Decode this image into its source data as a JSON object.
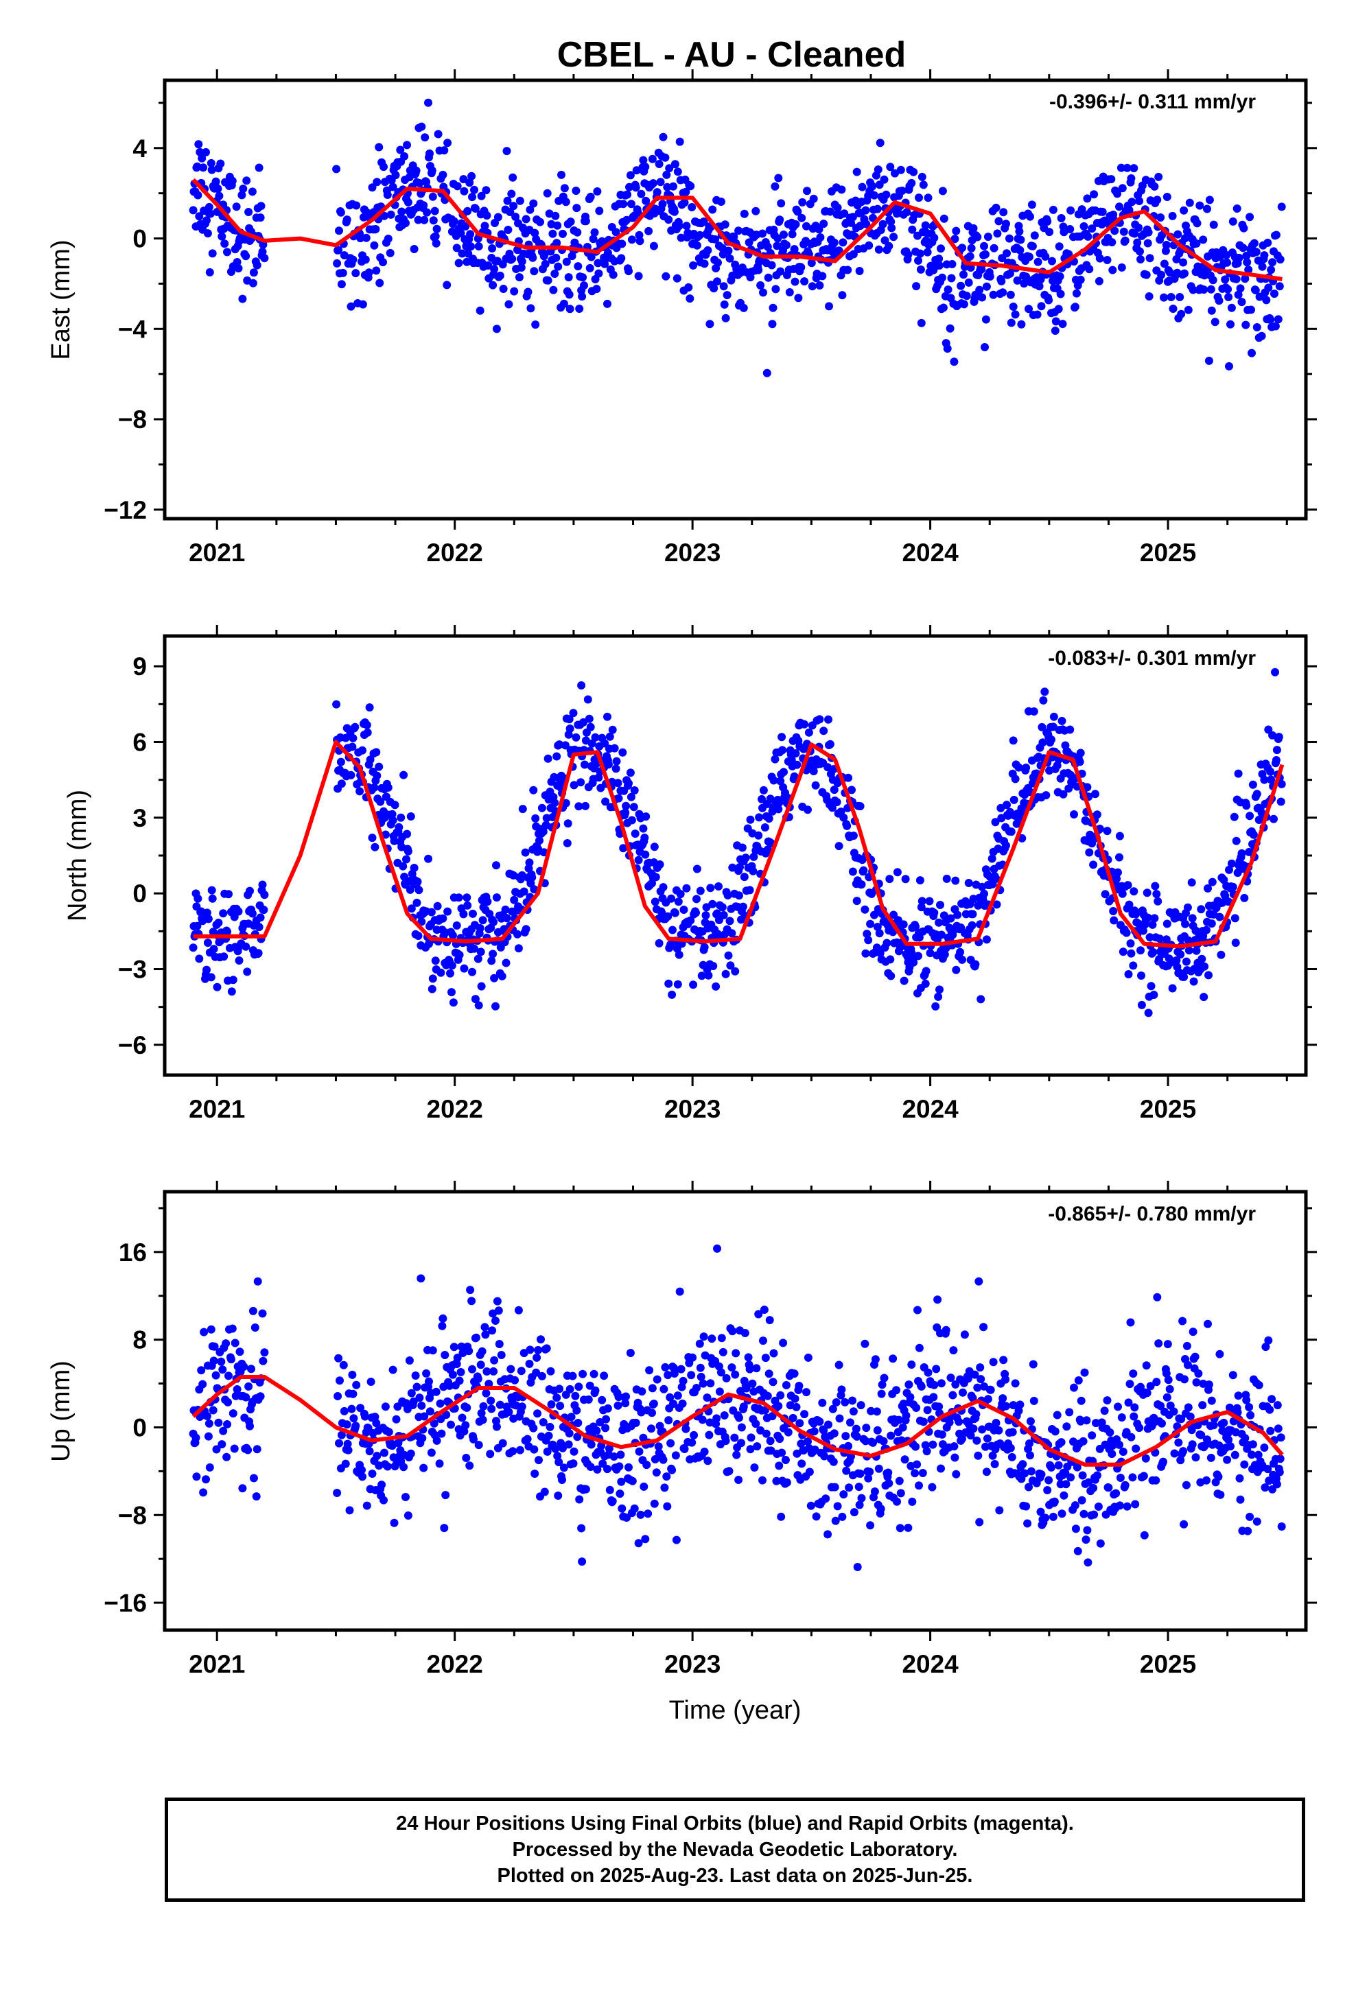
{
  "title": "CBEL  - AU - Cleaned",
  "colors": {
    "final_orbits": "#0000ff",
    "model_fit": "#ff0000",
    "frame": "#000000"
  },
  "footer": {
    "line1": "24 Hour Positions Using Final Orbits (blue) and Rapid Orbits (magenta).",
    "line2": "Processed by the Nevada Geodetic Laboratory.",
    "line3": "Plotted on 2025-Aug-23. Last data on 2025-Jun-25."
  },
  "chart_data": [
    {
      "type": "scatter",
      "ylabel": "East (mm)",
      "xlabel": "",
      "rate_text": "-0.396+/- 0.311 mm/yr",
      "xlim": [
        2020.78,
        2025.58
      ],
      "ylim": [
        -12.4,
        7.0
      ],
      "x_ticks": [
        "2021",
        "2022",
        "2023",
        "2024",
        "2025"
      ],
      "y_ticks": [
        4,
        0,
        -4,
        -8,
        -12
      ],
      "data_range": [
        2020.9,
        2025.48
      ],
      "gaps": [
        [
          2021.2,
          2021.5
        ]
      ],
      "series": [
        {
          "kind": "points",
          "legend_name": "Final Orbits",
          "x": [
            2020.92,
            2021.0,
            2021.08,
            2021.15,
            2021.55,
            2021.65,
            2021.75,
            2021.85,
            2021.95,
            2022.05,
            2022.2,
            2022.35,
            2022.5,
            2022.65,
            2022.8,
            2022.9,
            2023.0,
            2023.15,
            2023.3,
            2023.45,
            2023.55,
            2023.65,
            2023.75,
            2023.85,
            2023.95,
            2024.05,
            2024.2,
            2024.35,
            2024.5,
            2024.6,
            2024.75,
            2024.85,
            2025.0,
            2025.15,
            2025.3,
            2025.45
          ],
          "y": [
            2.6,
            1.5,
            0.5,
            -0.1,
            -0.4,
            0.6,
            1.8,
            2.5,
            1.5,
            0.1,
            -0.3,
            -0.4,
            -0.8,
            -0.2,
            1.5,
            1.8,
            0.5,
            -0.7,
            -0.7,
            -1.0,
            -0.8,
            0.3,
            1.3,
            1.7,
            0.2,
            -1.0,
            -1.2,
            -1.4,
            -1.4,
            -0.5,
            0.8,
            1.1,
            -0.5,
            -1.5,
            -1.6,
            -1.8
          ],
          "scatter_sd": 1.3
        },
        {
          "kind": "line",
          "legend_name": "Model fit",
          "x": [
            2020.9,
            2021.0,
            2021.1,
            2021.2,
            2021.35,
            2021.5,
            2021.65,
            2021.8,
            2021.95,
            2022.1,
            2022.3,
            2022.45,
            2022.6,
            2022.75,
            2022.85,
            2023.0,
            2023.15,
            2023.3,
            2023.45,
            2023.6,
            2023.75,
            2023.85,
            2024.0,
            2024.15,
            2024.3,
            2024.5,
            2024.65,
            2024.8,
            2024.9,
            2025.05,
            2025.2,
            2025.35,
            2025.48
          ],
          "y": [
            2.6,
            1.5,
            0.3,
            -0.1,
            0.0,
            -0.3,
            0.8,
            2.2,
            2.1,
            0.2,
            -0.4,
            -0.4,
            -0.6,
            0.5,
            1.8,
            1.8,
            -0.2,
            -0.8,
            -0.8,
            -1.0,
            0.5,
            1.6,
            1.1,
            -1.1,
            -1.2,
            -1.5,
            -0.5,
            0.9,
            1.2,
            -0.3,
            -1.4,
            -1.6,
            -1.8
          ]
        }
      ]
    },
    {
      "type": "scatter",
      "ylabel": "North (mm)",
      "xlabel": "",
      "rate_text": "-0.083+/- 0.301 mm/yr",
      "xlim": [
        2020.78,
        2025.58
      ],
      "ylim": [
        -7.2,
        10.2
      ],
      "x_ticks": [
        "2021",
        "2022",
        "2023",
        "2024",
        "2025"
      ],
      "y_ticks": [
        9,
        6,
        3,
        0,
        -3,
        -6
      ],
      "data_range": [
        2020.9,
        2025.48
      ],
      "gaps": [
        [
          2021.2,
          2021.5
        ]
      ],
      "series": [
        {
          "kind": "points",
          "legend_name": "Final Orbits",
          "x": [
            2020.92,
            2021.0,
            2021.08,
            2021.15,
            2021.55,
            2021.65,
            2021.75,
            2021.85,
            2021.95,
            2022.05,
            2022.2,
            2022.35,
            2022.5,
            2022.65,
            2022.8,
            2022.9,
            2023.0,
            2023.15,
            2023.3,
            2023.45,
            2023.55,
            2023.65,
            2023.75,
            2023.85,
            2023.95,
            2024.05,
            2024.2,
            2024.35,
            2024.5,
            2024.6,
            2024.75,
            2024.85,
            2025.0,
            2025.15,
            2025.3,
            2025.45
          ],
          "y": [
            -1.6,
            -1.7,
            -1.7,
            -1.6,
            6.0,
            4.5,
            2.5,
            -0.8,
            -1.9,
            -1.8,
            -1.8,
            2.0,
            5.8,
            5.0,
            1.5,
            -1.4,
            -1.9,
            -1.8,
            2.5,
            5.9,
            5.5,
            3.0,
            -0.5,
            -1.9,
            -2.0,
            -1.9,
            -1.2,
            3.5,
            5.8,
            4.8,
            1.0,
            -1.5,
            -2.0,
            -2.0,
            1.0,
            5.2
          ],
          "scatter_sd": 1.0
        },
        {
          "kind": "line",
          "legend_name": "Model fit",
          "x": [
            2020.9,
            2021.2,
            2021.35,
            2021.5,
            2021.6,
            2021.7,
            2021.8,
            2021.9,
            2022.05,
            2022.2,
            2022.35,
            2022.5,
            2022.6,
            2022.7,
            2022.8,
            2022.9,
            2023.05,
            2023.2,
            2023.35,
            2023.5,
            2023.6,
            2023.7,
            2023.8,
            2023.9,
            2024.05,
            2024.2,
            2024.35,
            2024.5,
            2024.6,
            2024.7,
            2024.8,
            2024.9,
            2025.05,
            2025.2,
            2025.35,
            2025.48
          ],
          "y": [
            -1.7,
            -1.7,
            1.5,
            6.0,
            5.0,
            2.0,
            -0.8,
            -1.8,
            -1.9,
            -1.8,
            0.0,
            5.5,
            5.6,
            2.8,
            -0.5,
            -1.8,
            -1.9,
            -1.8,
            2.0,
            5.9,
            5.3,
            2.6,
            -0.6,
            -2.0,
            -2.0,
            -1.8,
            1.8,
            5.6,
            5.3,
            2.4,
            -0.8,
            -2.0,
            -2.1,
            -1.9,
            1.2,
            5.1
          ]
        }
      ]
    },
    {
      "type": "scatter",
      "ylabel": "Up (mm)",
      "xlabel": "Time (year)",
      "rate_text": "-0.865+/- 0.780 mm/yr",
      "xlim": [
        2020.78,
        2025.58
      ],
      "ylim": [
        -18.5,
        21.5
      ],
      "x_ticks": [
        "2021",
        "2022",
        "2023",
        "2024",
        "2025"
      ],
      "y_ticks": [
        16,
        8,
        0,
        -8,
        -16
      ],
      "data_range": [
        2020.9,
        2025.48
      ],
      "gaps": [
        [
          2021.2,
          2021.5
        ]
      ],
      "series": [
        {
          "kind": "points",
          "legend_name": "Final Orbits",
          "x": [
            2020.92,
            2021.0,
            2021.08,
            2021.15,
            2021.55,
            2021.65,
            2021.75,
            2021.85,
            2021.95,
            2022.05,
            2022.2,
            2022.35,
            2022.5,
            2022.65,
            2022.8,
            2022.9,
            2023.0,
            2023.15,
            2023.3,
            2023.45,
            2023.55,
            2023.65,
            2023.75,
            2023.85,
            2023.95,
            2024.05,
            2024.2,
            2024.35,
            2024.5,
            2024.6,
            2024.75,
            2024.85,
            2025.0,
            2025.15,
            2025.3,
            2025.45
          ],
          "y": [
            1.0,
            3.0,
            4.6,
            4.6,
            -0.5,
            -1.5,
            -1.0,
            0.5,
            3.0,
            4.0,
            3.5,
            1.0,
            -1.0,
            -1.8,
            -1.5,
            0.0,
            2.0,
            3.0,
            1.5,
            -0.8,
            -1.8,
            -2.5,
            -2.4,
            -1.2,
            1.0,
            2.5,
            1.5,
            -1.5,
            -3.0,
            -3.5,
            -3.0,
            -1.0,
            1.0,
            1.5,
            -0.5,
            -2.5
          ],
          "scatter_sd": 3.6
        },
        {
          "kind": "line",
          "legend_name": "Model fit",
          "x": [
            2020.9,
            2021.0,
            2021.1,
            2021.2,
            2021.35,
            2021.5,
            2021.65,
            2021.8,
            2021.95,
            2022.1,
            2022.25,
            2022.4,
            2022.55,
            2022.7,
            2022.85,
            2023.0,
            2023.15,
            2023.3,
            2023.45,
            2023.6,
            2023.75,
            2023.9,
            2024.05,
            2024.2,
            2024.35,
            2024.5,
            2024.65,
            2024.8,
            2024.95,
            2025.1,
            2025.25,
            2025.4,
            2025.48
          ],
          "y": [
            1.0,
            3.0,
            4.6,
            4.6,
            2.5,
            0.0,
            -1.2,
            -0.8,
            1.5,
            3.6,
            3.6,
            1.5,
            -0.8,
            -1.8,
            -1.2,
            1.0,
            3.0,
            2.2,
            -0.3,
            -2.0,
            -2.6,
            -1.5,
            1.0,
            2.4,
            0.8,
            -2.0,
            -3.4,
            -3.4,
            -1.8,
            0.5,
            1.4,
            -0.5,
            -2.5
          ]
        }
      ]
    }
  ]
}
